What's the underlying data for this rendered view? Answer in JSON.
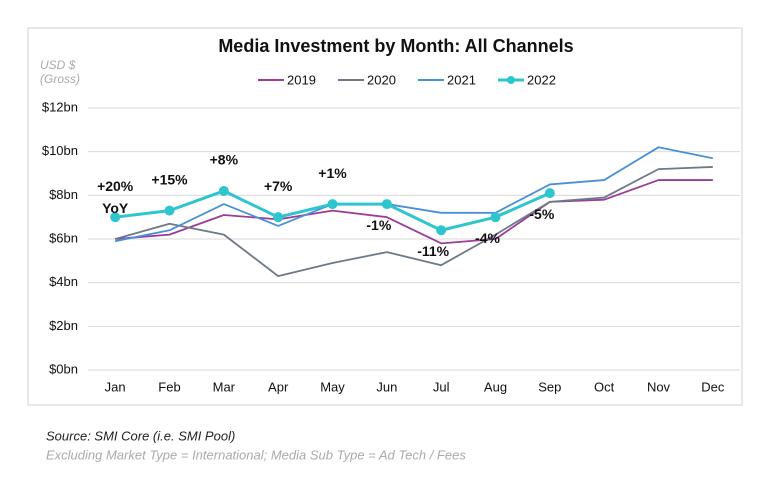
{
  "chart_data": {
    "type": "line",
    "title": "Media Investment by Month: All Channels",
    "y_axis_label": "USD $",
    "y_axis_sublabel": "(Gross)",
    "categories": [
      "Jan",
      "Feb",
      "Mar",
      "Apr",
      "May",
      "Jun",
      "Jul",
      "Aug",
      "Sep",
      "Oct",
      "Nov",
      "Dec"
    ],
    "series": [
      {
        "name": "2019",
        "color": "#9b3c9b",
        "values": [
          6.0,
          6.2,
          7.1,
          6.9,
          7.3,
          7.0,
          5.8,
          6.0,
          7.7,
          7.8,
          8.7,
          8.7
        ]
      },
      {
        "name": "2020",
        "color": "#6e7986",
        "values": [
          6.0,
          6.7,
          6.2,
          4.3,
          4.9,
          5.4,
          4.8,
          6.2,
          7.7,
          7.9,
          9.2,
          9.3
        ]
      },
      {
        "name": "2021",
        "color": "#4a90d9",
        "values": [
          5.9,
          6.4,
          7.6,
          6.6,
          7.6,
          7.6,
          7.2,
          7.2,
          8.5,
          8.7,
          10.2,
          9.7
        ]
      },
      {
        "name": "2022",
        "color": "#2ec5cf",
        "markers": true,
        "values": [
          7.0,
          7.3,
          8.2,
          7.0,
          7.6,
          7.6,
          6.4,
          7.0,
          8.1,
          null,
          null,
          null
        ],
        "annotations": [
          "+20% YoY",
          "+15%",
          "+8%",
          "+7%",
          "+1%",
          "-1%",
          "-11%",
          "-4%",
          "-5%"
        ]
      }
    ],
    "ylim": [
      0,
      12
    ],
    "yticks": [
      {
        "value": 0,
        "label": "$0bn"
      },
      {
        "value": 2,
        "label": "$2bn"
      },
      {
        "value": 4,
        "label": "$4bn"
      },
      {
        "value": 6,
        "label": "$6bn"
      },
      {
        "value": 8,
        "label": "$8bn"
      },
      {
        "value": 10,
        "label": "$10bn"
      },
      {
        "value": 12,
        "label": "$12bn"
      }
    ],
    "grid": true,
    "legend": "top"
  },
  "footer": {
    "source": "Source:  SMI Core (i.e. SMI Pool)",
    "note": "Excluding Market Type = International; Media Sub Type = Ad Tech / Fees"
  }
}
